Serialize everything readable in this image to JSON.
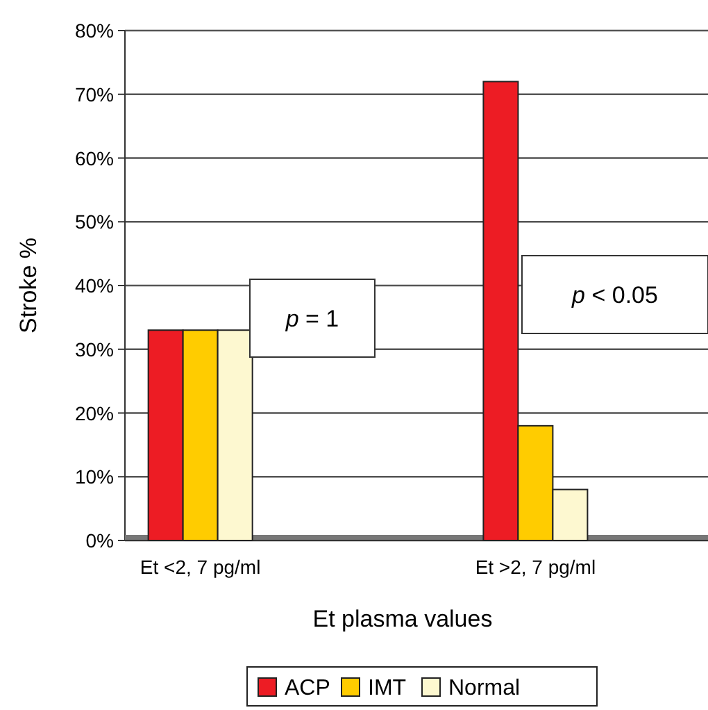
{
  "chart_data": {
    "type": "bar",
    "xlabel": "Et plasma values",
    "ylabel": "Stroke %",
    "categories": [
      "Et <2, 7 pg/ml",
      "Et >2, 7 pg/ml"
    ],
    "series": [
      {
        "name": "ACP",
        "color": "#ed1c24",
        "values": [
          33,
          72
        ]
      },
      {
        "name": "IMT",
        "color": "#ffcc00",
        "values": [
          33,
          18
        ]
      },
      {
        "name": "Normal",
        "color": "#fdf8d0",
        "values": [
          33,
          8
        ]
      }
    ],
    "ylim": [
      0,
      80
    ],
    "yticks": [
      {
        "value": 0,
        "label": "0%"
      },
      {
        "value": 10,
        "label": "10%"
      },
      {
        "value": 20,
        "label": "20%"
      },
      {
        "value": 30,
        "label": "30%"
      },
      {
        "value": 40,
        "label": "40%"
      },
      {
        "value": 50,
        "label": "50%"
      },
      {
        "value": 60,
        "label": "60%"
      },
      {
        "value": 70,
        "label": "70%"
      },
      {
        "value": 80,
        "label": "80%"
      }
    ],
    "grid": "y",
    "legend": "bottom",
    "annotations": [
      "p = 1",
      "p < 0.05"
    ]
  }
}
